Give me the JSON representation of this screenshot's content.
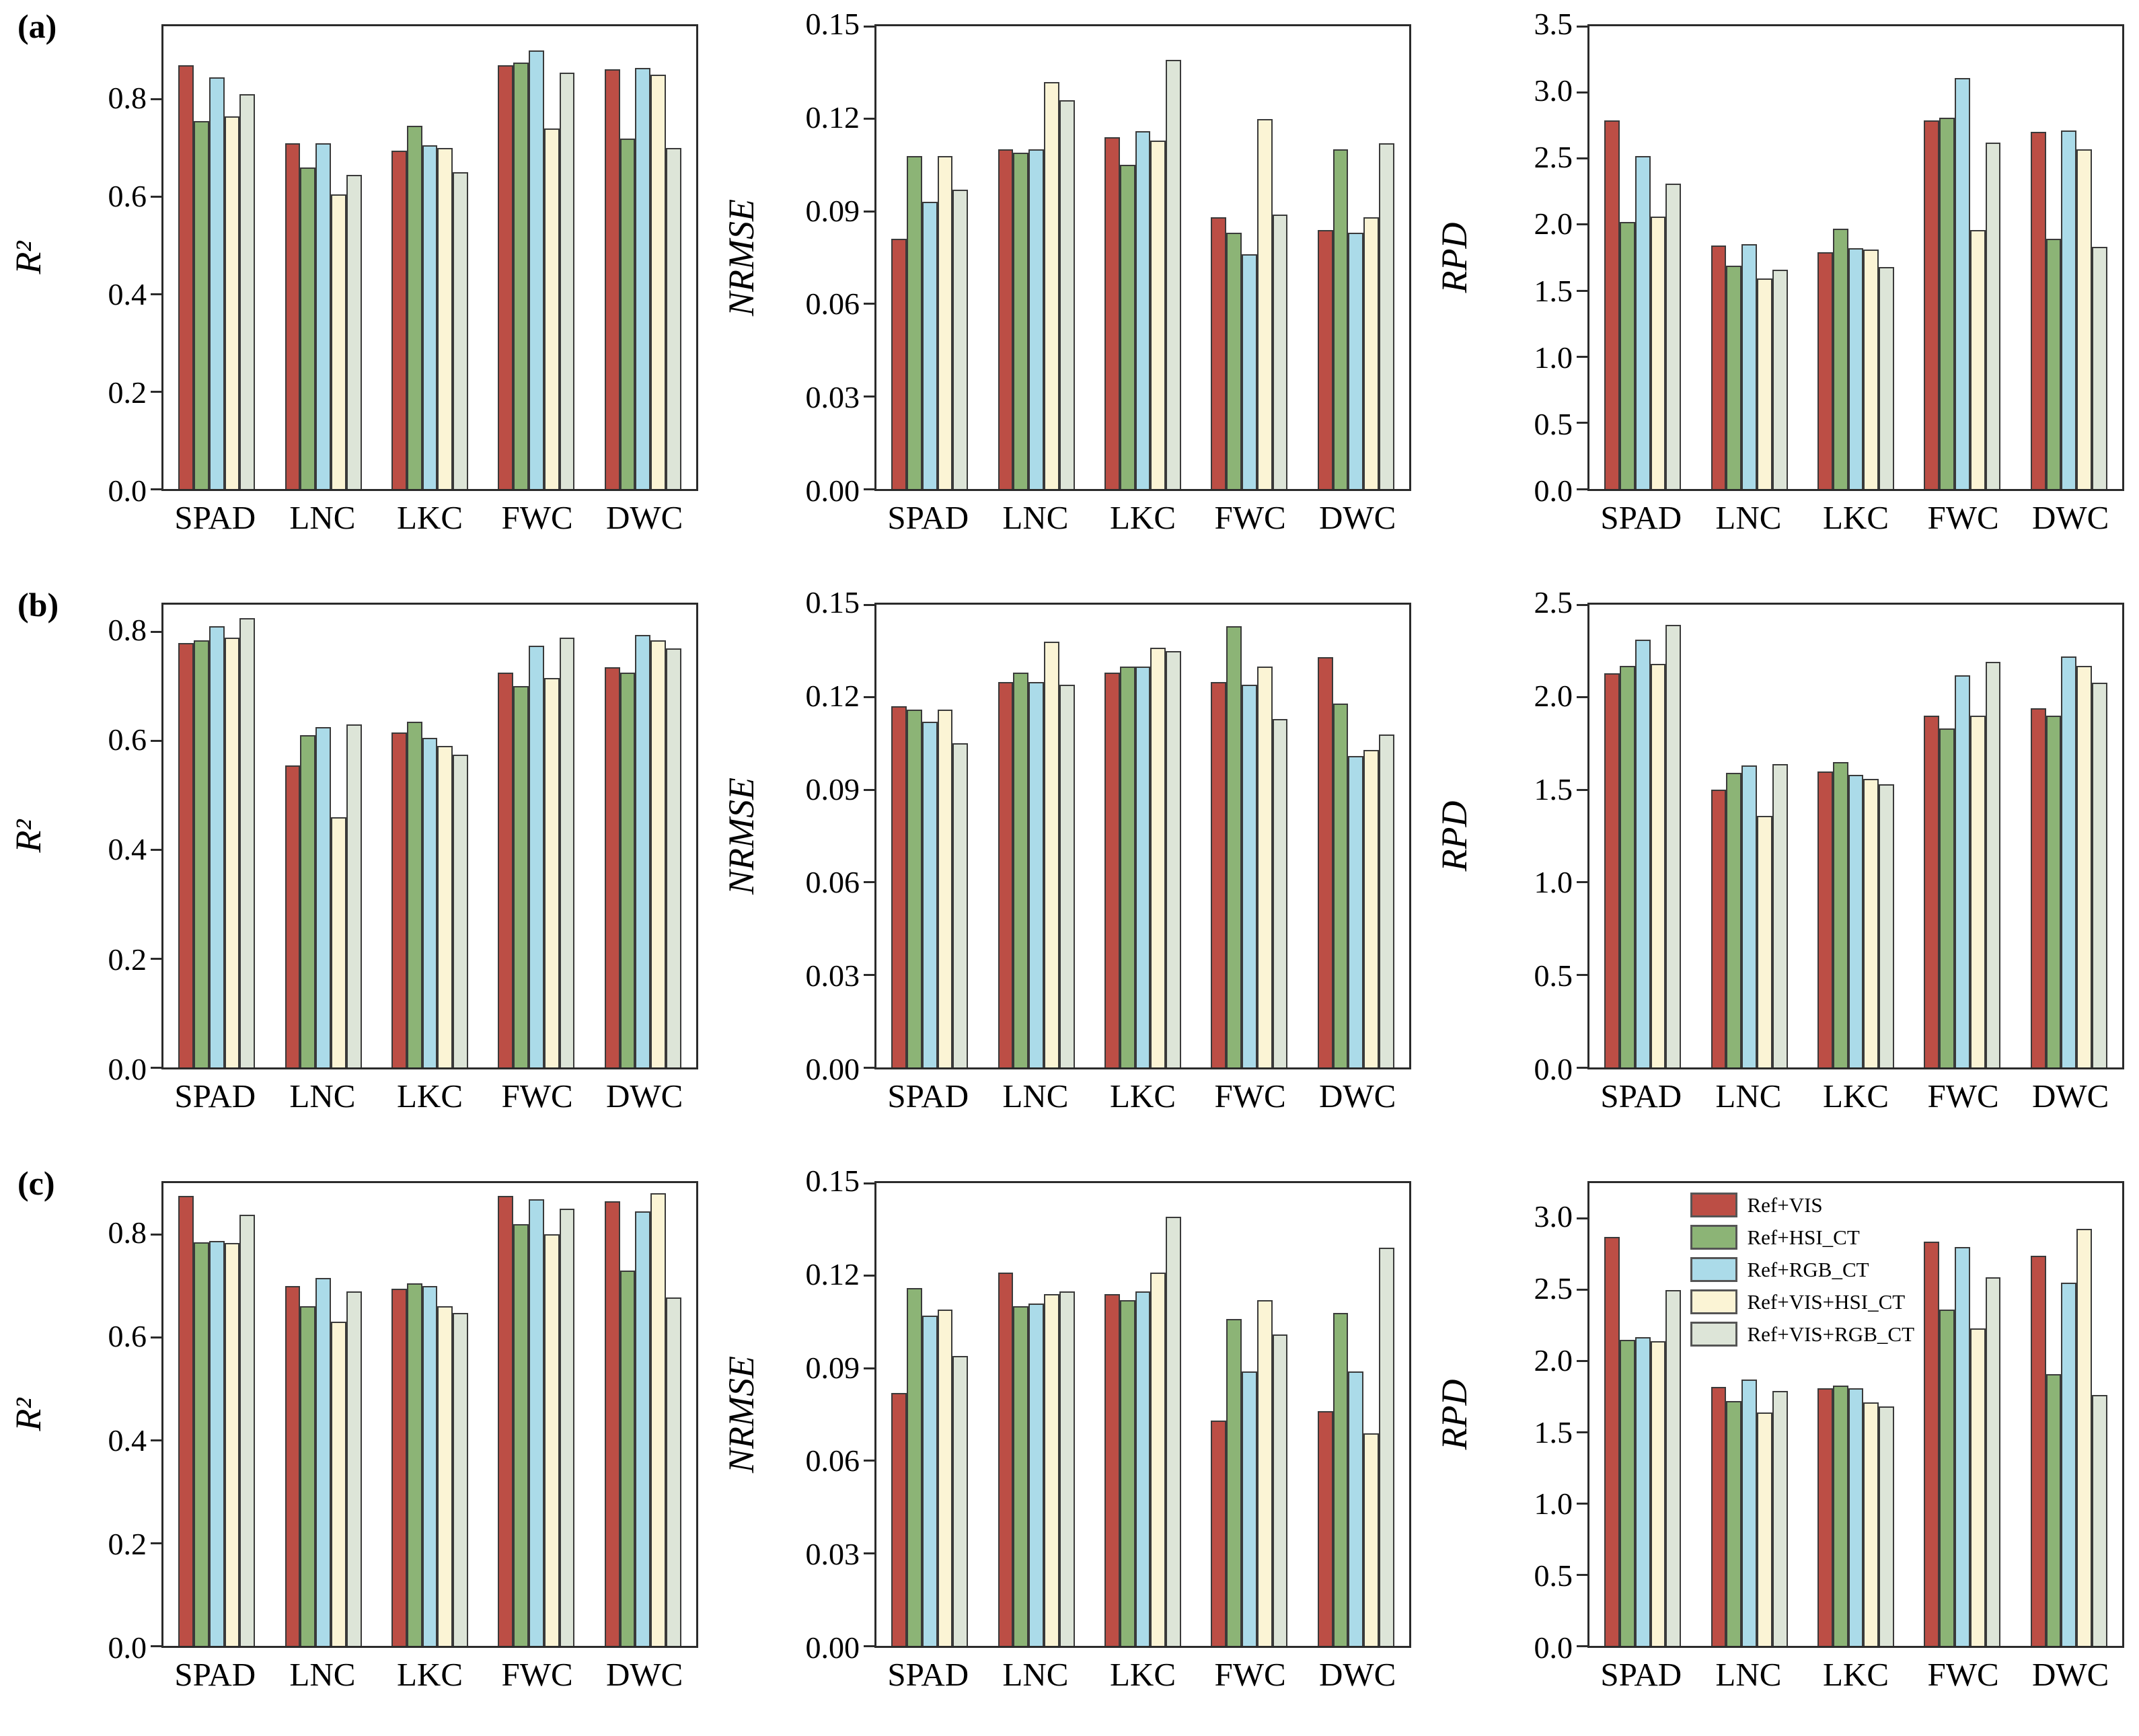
{
  "figure": {
    "background": "#ffffff",
    "axis_color": "#2b2b2b",
    "bar_edge_color": "#3a3a3a",
    "series_colors": [
      "#BC4E45",
      "#8CB476",
      "#ABDBE9",
      "#FBF4D5",
      "#DDE5D8"
    ],
    "series_names": [
      "Ref+VIS",
      "Ref+HSI_CT",
      "Ref+RGB_CT",
      "Ref+VIS+HSI_CT",
      "Ref+VIS+RGB_CT"
    ],
    "panel_labels": [
      "(a)",
      "(b)",
      "(c)"
    ]
  },
  "legend": {
    "items": [
      {
        "label": "Ref+VIS",
        "color": "#BC4E45"
      },
      {
        "label": "Ref+HSI_CT",
        "color": "#8CB476"
      },
      {
        "label": "Ref+RGB_CT",
        "color": "#ABDBE9"
      },
      {
        "label": "Ref+VIS+HSI_CT",
        "color": "#FBF4D5"
      },
      {
        "label": "Ref+VIS+RGB_CT",
        "color": "#DDE5D8"
      }
    ],
    "position": "inside-top-left-of-panel-c-RPD-chart"
  },
  "chart_data": [
    {
      "type": "bar",
      "panel": "a",
      "metric": "R2",
      "ylabel": "R²",
      "ylim": [
        0,
        0.95
      ],
      "yticks": [
        0.0,
        0.2,
        0.4,
        0.6,
        0.8
      ],
      "ytick_labels": [
        "0.0",
        "0.2",
        "0.4",
        "0.6",
        "0.8"
      ],
      "categories": [
        "SPAD",
        "LNC",
        "LKC",
        "FWC",
        "DWC"
      ],
      "series": [
        {
          "name": "Ref+VIS",
          "values": [
            0.87,
            0.71,
            0.695,
            0.87,
            0.862
          ]
        },
        {
          "name": "Ref+HSI_CT",
          "values": [
            0.755,
            0.66,
            0.745,
            0.876,
            0.72
          ]
        },
        {
          "name": "Ref+RGB_CT",
          "values": [
            0.845,
            0.71,
            0.705,
            0.9,
            0.865
          ]
        },
        {
          "name": "Ref+VIS+HSI_CT",
          "values": [
            0.765,
            0.605,
            0.7,
            0.74,
            0.85
          ]
        },
        {
          "name": "Ref+VIS+RGB_CT",
          "values": [
            0.81,
            0.645,
            0.65,
            0.855,
            0.7
          ]
        }
      ]
    },
    {
      "type": "bar",
      "panel": "a",
      "metric": "NRMSE",
      "ylabel": "NRMSE",
      "ylim": [
        0,
        0.15
      ],
      "yticks": [
        0.0,
        0.03,
        0.06,
        0.09,
        0.12,
        0.15
      ],
      "ytick_labels": [
        "0.00",
        "0.03",
        "0.06",
        "0.09",
        "0.12",
        "0.15"
      ],
      "categories": [
        "SPAD",
        "LNC",
        "LKC",
        "FWC",
        "DWC"
      ],
      "series": [
        {
          "name": "Ref+VIS",
          "values": [
            0.081,
            0.11,
            0.114,
            0.088,
            0.084
          ]
        },
        {
          "name": "Ref+HSI_CT",
          "values": [
            0.108,
            0.109,
            0.105,
            0.083,
            0.11
          ]
        },
        {
          "name": "Ref+RGB_CT",
          "values": [
            0.093,
            0.11,
            0.116,
            0.076,
            0.083
          ]
        },
        {
          "name": "Ref+VIS+HSI_CT",
          "values": [
            0.108,
            0.132,
            0.113,
            0.12,
            0.088
          ]
        },
        {
          "name": "Ref+VIS+RGB_CT",
          "values": [
            0.097,
            0.126,
            0.139,
            0.089,
            0.112
          ]
        }
      ]
    },
    {
      "type": "bar",
      "panel": "a",
      "metric": "RPD",
      "ylabel": "RPD",
      "ylim": [
        0,
        3.5
      ],
      "yticks": [
        0.0,
        0.5,
        1.0,
        1.5,
        2.0,
        2.5,
        3.0,
        3.5
      ],
      "ytick_labels": [
        "0.0",
        "0.5",
        "1.0",
        "1.5",
        "2.0",
        "2.5",
        "3.0",
        "3.5"
      ],
      "categories": [
        "SPAD",
        "LNC",
        "LKC",
        "FWC",
        "DWC"
      ],
      "series": [
        {
          "name": "Ref+VIS",
          "values": [
            2.79,
            1.84,
            1.79,
            2.79,
            2.7
          ]
        },
        {
          "name": "Ref+HSI_CT",
          "values": [
            2.02,
            1.69,
            1.97,
            2.81,
            1.89
          ]
        },
        {
          "name": "Ref+RGB_CT",
          "values": [
            2.52,
            1.85,
            1.82,
            3.11,
            2.71
          ]
        },
        {
          "name": "Ref+VIS+HSI_CT",
          "values": [
            2.06,
            1.59,
            1.81,
            1.96,
            2.57
          ]
        },
        {
          "name": "Ref+VIS+RGB_CT",
          "values": [
            2.31,
            1.66,
            1.68,
            2.62,
            1.83
          ]
        }
      ]
    },
    {
      "type": "bar",
      "panel": "b",
      "metric": "R2",
      "ylabel": "R²",
      "ylim": [
        0,
        0.85
      ],
      "yticks": [
        0.0,
        0.2,
        0.4,
        0.6,
        0.8
      ],
      "ytick_labels": [
        "0.0",
        "0.2",
        "0.4",
        "0.6",
        "0.8"
      ],
      "categories": [
        "SPAD",
        "LNC",
        "LKC",
        "FWC",
        "DWC"
      ],
      "series": [
        {
          "name": "Ref+VIS",
          "values": [
            0.78,
            0.555,
            0.615,
            0.725,
            0.735
          ]
        },
        {
          "name": "Ref+HSI_CT",
          "values": [
            0.785,
            0.61,
            0.635,
            0.7,
            0.725
          ]
        },
        {
          "name": "Ref+RGB_CT",
          "values": [
            0.81,
            0.625,
            0.605,
            0.775,
            0.795
          ]
        },
        {
          "name": "Ref+VIS+HSI_CT",
          "values": [
            0.79,
            0.46,
            0.59,
            0.715,
            0.785
          ]
        },
        {
          "name": "Ref+VIS+RGB_CT",
          "values": [
            0.825,
            0.63,
            0.575,
            0.79,
            0.77
          ]
        }
      ]
    },
    {
      "type": "bar",
      "panel": "b",
      "metric": "NRMSE",
      "ylabel": "NRMSE",
      "ylim": [
        0,
        0.15
      ],
      "yticks": [
        0.0,
        0.03,
        0.06,
        0.09,
        0.12,
        0.15
      ],
      "ytick_labels": [
        "0.00",
        "0.03",
        "0.06",
        "0.09",
        "0.12",
        "0.15"
      ],
      "categories": [
        "SPAD",
        "LNC",
        "LKC",
        "FWC",
        "DWC"
      ],
      "series": [
        {
          "name": "Ref+VIS",
          "values": [
            0.117,
            0.125,
            0.128,
            0.125,
            0.133
          ]
        },
        {
          "name": "Ref+HSI_CT",
          "values": [
            0.116,
            0.128,
            0.13,
            0.143,
            0.118
          ]
        },
        {
          "name": "Ref+RGB_CT",
          "values": [
            0.112,
            0.125,
            0.13,
            0.124,
            0.101
          ]
        },
        {
          "name": "Ref+VIS+HSI_CT",
          "values": [
            0.116,
            0.138,
            0.136,
            0.13,
            0.103
          ]
        },
        {
          "name": "Ref+VIS+RGB_CT",
          "values": [
            0.105,
            0.124,
            0.135,
            0.113,
            0.108
          ]
        }
      ]
    },
    {
      "type": "bar",
      "panel": "b",
      "metric": "RPD",
      "ylabel": "RPD",
      "ylim": [
        0,
        2.5
      ],
      "yticks": [
        0.0,
        0.5,
        1.0,
        1.5,
        2.0,
        2.5
      ],
      "ytick_labels": [
        "0.0",
        "0.5",
        "1.0",
        "1.5",
        "2.0",
        "2.5"
      ],
      "categories": [
        "SPAD",
        "LNC",
        "LKC",
        "FWC",
        "DWC"
      ],
      "series": [
        {
          "name": "Ref+VIS",
          "values": [
            2.13,
            1.5,
            1.6,
            1.9,
            1.94
          ]
        },
        {
          "name": "Ref+HSI_CT",
          "values": [
            2.17,
            1.59,
            1.65,
            1.83,
            1.9
          ]
        },
        {
          "name": "Ref+RGB_CT",
          "values": [
            2.31,
            1.63,
            1.58,
            2.12,
            2.22
          ]
        },
        {
          "name": "Ref+VIS+HSI_CT",
          "values": [
            2.18,
            1.36,
            1.56,
            1.9,
            2.17
          ]
        },
        {
          "name": "Ref+VIS+RGB_CT",
          "values": [
            2.39,
            1.64,
            1.53,
            2.19,
            2.08
          ]
        }
      ]
    },
    {
      "type": "bar",
      "panel": "c",
      "metric": "R2",
      "ylabel": "R²",
      "ylim": [
        0,
        0.9
      ],
      "yticks": [
        0.0,
        0.2,
        0.4,
        0.6,
        0.8
      ],
      "ytick_labels": [
        "0.0",
        "0.2",
        "0.4",
        "0.6",
        "0.8"
      ],
      "categories": [
        "SPAD",
        "LNC",
        "LKC",
        "FWC",
        "DWC"
      ],
      "series": [
        {
          "name": "Ref+VIS",
          "values": [
            0.875,
            0.7,
            0.695,
            0.875,
            0.865
          ]
        },
        {
          "name": "Ref+HSI_CT",
          "values": [
            0.785,
            0.66,
            0.705,
            0.82,
            0.73
          ]
        },
        {
          "name": "Ref+RGB_CT",
          "values": [
            0.788,
            0.715,
            0.7,
            0.868,
            0.845
          ]
        },
        {
          "name": "Ref+VIS+HSI_CT",
          "values": [
            0.783,
            0.63,
            0.66,
            0.8,
            0.88
          ]
        },
        {
          "name": "Ref+VIS+RGB_CT",
          "values": [
            0.838,
            0.69,
            0.648,
            0.85,
            0.678
          ]
        }
      ]
    },
    {
      "type": "bar",
      "panel": "c",
      "metric": "NRMSE",
      "ylabel": "NRMSE",
      "ylim": [
        0,
        0.15
      ],
      "yticks": [
        0.0,
        0.03,
        0.06,
        0.09,
        0.12,
        0.15
      ],
      "ytick_labels": [
        "0.00",
        "0.03",
        "0.06",
        "0.09",
        "0.12",
        "0.15"
      ],
      "categories": [
        "SPAD",
        "LNC",
        "LKC",
        "FWC",
        "DWC"
      ],
      "series": [
        {
          "name": "Ref+VIS",
          "values": [
            0.082,
            0.121,
            0.114,
            0.073,
            0.076
          ]
        },
        {
          "name": "Ref+HSI_CT",
          "values": [
            0.116,
            0.11,
            0.112,
            0.106,
            0.108
          ]
        },
        {
          "name": "Ref+RGB_CT",
          "values": [
            0.107,
            0.111,
            0.115,
            0.089,
            0.089
          ]
        },
        {
          "name": "Ref+VIS+HSI_CT",
          "values": [
            0.109,
            0.114,
            0.121,
            0.112,
            0.069
          ]
        },
        {
          "name": "Ref+VIS+RGB_CT",
          "values": [
            0.094,
            0.115,
            0.139,
            0.101,
            0.129
          ]
        }
      ]
    },
    {
      "type": "bar",
      "panel": "c",
      "metric": "RPD",
      "ylabel": "RPD",
      "ylim": [
        0,
        3.25
      ],
      "yticks": [
        0.0,
        0.5,
        1.0,
        1.5,
        2.0,
        2.5,
        3.0
      ],
      "ytick_labels": [
        "0.0",
        "0.5",
        "1.0",
        "1.5",
        "2.0",
        "2.5",
        "3.0"
      ],
      "categories": [
        "SPAD",
        "LNC",
        "LKC",
        "FWC",
        "DWC"
      ],
      "has_legend": true,
      "series": [
        {
          "name": "Ref+VIS",
          "values": [
            2.87,
            1.82,
            1.81,
            2.84,
            2.74
          ]
        },
        {
          "name": "Ref+HSI_CT",
          "values": [
            2.15,
            1.72,
            1.83,
            2.36,
            1.91
          ]
        },
        {
          "name": "Ref+RGB_CT",
          "values": [
            2.17,
            1.87,
            1.81,
            2.8,
            2.55
          ]
        },
        {
          "name": "Ref+VIS+HSI_CT",
          "values": [
            2.14,
            1.64,
            1.71,
            2.23,
            2.93
          ]
        },
        {
          "name": "Ref+VIS+RGB_CT",
          "values": [
            2.5,
            1.79,
            1.68,
            2.59,
            1.76
          ]
        }
      ]
    }
  ]
}
